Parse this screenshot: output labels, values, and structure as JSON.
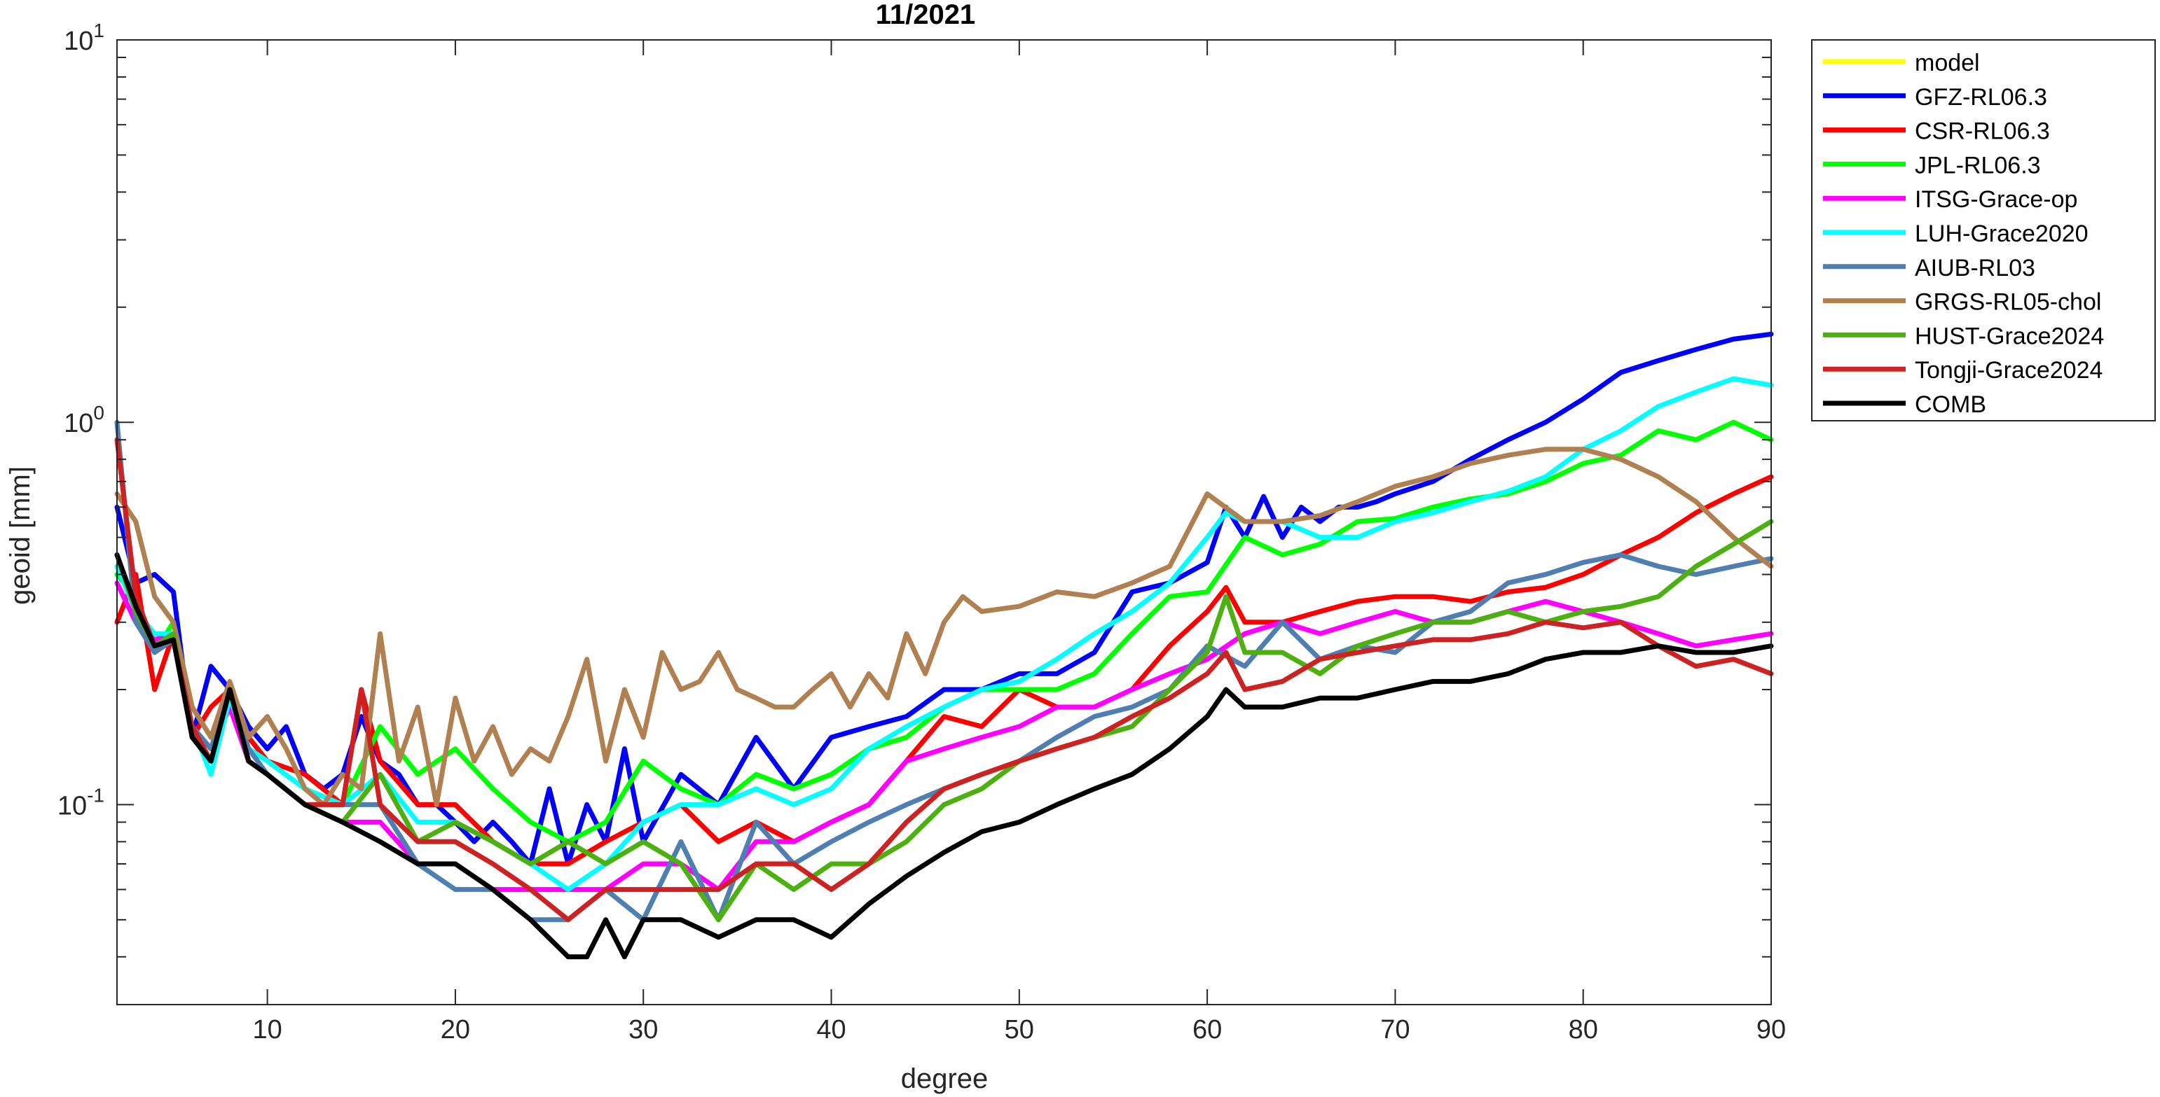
{
  "chart_data": {
    "type": "line",
    "title": "11/2021",
    "xlabel": "degree",
    "ylabel": "geoid [mm]",
    "xlim": [
      2,
      90
    ],
    "ylim": [
      0.03,
      10
    ],
    "yscale": "log",
    "xticks": [
      10,
      20,
      30,
      40,
      50,
      60,
      70,
      80,
      90
    ],
    "xtick_labels": [
      "10",
      "20",
      "30",
      "40",
      "50",
      "60",
      "70",
      "80",
      "90"
    ],
    "yticks": [
      {
        "value": 0.1,
        "base": "10",
        "exp": "-1"
      },
      {
        "value": 1,
        "base": "10",
        "exp": "0"
      },
      {
        "value": 10,
        "base": "10",
        "exp": "1"
      }
    ],
    "grid": false,
    "legend_position": "outside-top-right",
    "colors": {
      "model": "#ffff00",
      "GFZ-RL06.3": "#0000ff",
      "CSR-RL06.3": "#ff0000",
      "JPL-RL06.3": "#00ff00",
      "ITSG-Grace-op": "#ff00ff",
      "LUH-Grace2020": "#00ffff",
      "AIUB-RL03": "#4f7fb0",
      "GRGS-RL05-chol": "#b08050",
      "HUST-Grace2024": "#4cb010",
      "Tongji-Grace2024": "#cc2222",
      "COMB": "#000000"
    },
    "series": [
      {
        "name": "model",
        "keys": [],
        "values": []
      },
      {
        "name": "GFZ-RL06.3",
        "keys": [
          2,
          3,
          4,
          5,
          6,
          7,
          8,
          9,
          10,
          11,
          12,
          13,
          14,
          15,
          16,
          17,
          18,
          19,
          20,
          21,
          22,
          23,
          24,
          25,
          26,
          27,
          28,
          29,
          30,
          32,
          34,
          36,
          38,
          40,
          42,
          44,
          46,
          48,
          50,
          52,
          54,
          56,
          58,
          60,
          61,
          62,
          63,
          64,
          65,
          66,
          67,
          68,
          69,
          70,
          72,
          74,
          76,
          78,
          80,
          82,
          84,
          86,
          88,
          90
        ],
        "values": [
          0.6,
          0.38,
          0.4,
          0.36,
          0.15,
          0.23,
          0.2,
          0.16,
          0.14,
          0.16,
          0.12,
          0.11,
          0.12,
          0.17,
          0.13,
          0.12,
          0.1,
          0.1,
          0.09,
          0.08,
          0.09,
          0.08,
          0.07,
          0.11,
          0.07,
          0.1,
          0.08,
          0.14,
          0.08,
          0.12,
          0.1,
          0.15,
          0.11,
          0.15,
          0.16,
          0.17,
          0.2,
          0.2,
          0.22,
          0.22,
          0.25,
          0.36,
          0.38,
          0.43,
          0.6,
          0.5,
          0.64,
          0.5,
          0.6,
          0.55,
          0.6,
          0.6,
          0.62,
          0.65,
          0.7,
          0.8,
          0.9,
          1.0,
          1.15,
          1.35,
          1.45,
          1.55,
          1.65,
          1.7
        ]
      },
      {
        "name": "CSR-RL06.3",
        "keys": [
          2,
          3,
          4,
          5,
          6,
          7,
          8,
          9,
          10,
          12,
          14,
          15,
          16,
          18,
          20,
          22,
          24,
          26,
          28,
          30,
          32,
          34,
          36,
          38,
          40,
          42,
          44,
          46,
          48,
          50,
          52,
          54,
          56,
          58,
          60,
          61,
          62,
          64,
          66,
          68,
          70,
          72,
          74,
          76,
          78,
          80,
          82,
          84,
          86,
          88,
          90
        ],
        "values": [
          0.3,
          0.4,
          0.2,
          0.28,
          0.15,
          0.18,
          0.2,
          0.15,
          0.13,
          0.12,
          0.1,
          0.2,
          0.13,
          0.1,
          0.1,
          0.08,
          0.07,
          0.07,
          0.08,
          0.09,
          0.1,
          0.08,
          0.09,
          0.08,
          0.09,
          0.1,
          0.13,
          0.17,
          0.16,
          0.2,
          0.18,
          0.18,
          0.2,
          0.26,
          0.32,
          0.37,
          0.3,
          0.3,
          0.32,
          0.34,
          0.35,
          0.35,
          0.34,
          0.36,
          0.37,
          0.4,
          0.45,
          0.5,
          0.58,
          0.65,
          0.72
        ]
      },
      {
        "name": "JPL-RL06.3",
        "keys": [
          2,
          3,
          4,
          5,
          6,
          7,
          8,
          9,
          10,
          12,
          14,
          16,
          18,
          20,
          22,
          24,
          26,
          28,
          30,
          32,
          34,
          36,
          38,
          40,
          42,
          44,
          46,
          48,
          50,
          52,
          54,
          56,
          58,
          60,
          62,
          64,
          66,
          68,
          70,
          72,
          74,
          76,
          78,
          80,
          82,
          84,
          86,
          88,
          90
        ],
        "values": [
          0.4,
          0.35,
          0.25,
          0.3,
          0.18,
          0.15,
          0.2,
          0.14,
          0.13,
          0.11,
          0.1,
          0.16,
          0.12,
          0.14,
          0.11,
          0.09,
          0.08,
          0.09,
          0.13,
          0.11,
          0.1,
          0.12,
          0.11,
          0.12,
          0.14,
          0.15,
          0.18,
          0.2,
          0.2,
          0.2,
          0.22,
          0.28,
          0.35,
          0.36,
          0.5,
          0.45,
          0.48,
          0.55,
          0.56,
          0.6,
          0.63,
          0.65,
          0.7,
          0.78,
          0.82,
          0.95,
          0.9,
          1.0,
          0.9
        ]
      },
      {
        "name": "ITSG-Grace-op",
        "keys": [
          2,
          3,
          4,
          5,
          6,
          7,
          8,
          9,
          10,
          12,
          14,
          16,
          18,
          20,
          22,
          24,
          26,
          28,
          30,
          32,
          34,
          36,
          38,
          40,
          42,
          44,
          46,
          48,
          50,
          52,
          54,
          56,
          58,
          60,
          62,
          64,
          66,
          68,
          70,
          72,
          74,
          76,
          78,
          80,
          82,
          84,
          86,
          88,
          90
        ],
        "values": [
          0.38,
          0.3,
          0.27,
          0.28,
          0.16,
          0.14,
          0.18,
          0.13,
          0.12,
          0.1,
          0.09,
          0.09,
          0.07,
          0.07,
          0.06,
          0.06,
          0.06,
          0.06,
          0.07,
          0.07,
          0.06,
          0.08,
          0.08,
          0.09,
          0.1,
          0.13,
          0.14,
          0.15,
          0.16,
          0.18,
          0.18,
          0.2,
          0.22,
          0.24,
          0.28,
          0.3,
          0.28,
          0.3,
          0.32,
          0.3,
          0.3,
          0.32,
          0.34,
          0.32,
          0.3,
          0.28,
          0.26,
          0.27,
          0.28
        ]
      },
      {
        "name": "LUH-Grace2020",
        "keys": [
          2,
          3,
          4,
          5,
          6,
          7,
          8,
          9,
          10,
          12,
          14,
          16,
          18,
          20,
          22,
          24,
          26,
          28,
          30,
          32,
          34,
          36,
          38,
          40,
          42,
          44,
          46,
          48,
          50,
          52,
          54,
          56,
          58,
          60,
          61,
          62,
          64,
          66,
          68,
          70,
          72,
          74,
          76,
          78,
          80,
          82,
          84,
          86,
          88,
          90
        ],
        "values": [
          0.42,
          0.32,
          0.28,
          0.28,
          0.16,
          0.12,
          0.19,
          0.14,
          0.13,
          0.11,
          0.1,
          0.12,
          0.09,
          0.09,
          0.08,
          0.07,
          0.06,
          0.07,
          0.09,
          0.1,
          0.1,
          0.11,
          0.1,
          0.11,
          0.14,
          0.16,
          0.18,
          0.2,
          0.21,
          0.24,
          0.28,
          0.32,
          0.38,
          0.5,
          0.58,
          0.55,
          0.55,
          0.5,
          0.5,
          0.55,
          0.58,
          0.62,
          0.66,
          0.72,
          0.85,
          0.95,
          1.1,
          1.2,
          1.3,
          1.25
        ]
      },
      {
        "name": "AIUB-RL03",
        "keys": [
          2,
          3,
          4,
          5,
          6,
          7,
          8,
          9,
          10,
          12,
          14,
          16,
          18,
          20,
          22,
          24,
          26,
          28,
          30,
          32,
          34,
          36,
          38,
          40,
          42,
          44,
          46,
          48,
          50,
          52,
          54,
          56,
          58,
          60,
          62,
          64,
          66,
          68,
          70,
          72,
          74,
          76,
          78,
          80,
          82,
          84,
          86,
          88,
          90
        ],
        "values": [
          1.0,
          0.3,
          0.25,
          0.27,
          0.16,
          0.14,
          0.2,
          0.14,
          0.12,
          0.1,
          0.1,
          0.1,
          0.07,
          0.06,
          0.06,
          0.05,
          0.05,
          0.06,
          0.05,
          0.08,
          0.05,
          0.09,
          0.07,
          0.08,
          0.09,
          0.1,
          0.11,
          0.12,
          0.13,
          0.15,
          0.17,
          0.18,
          0.2,
          0.26,
          0.23,
          0.3,
          0.24,
          0.26,
          0.25,
          0.3,
          0.32,
          0.38,
          0.4,
          0.43,
          0.45,
          0.42,
          0.4,
          0.42,
          0.44
        ]
      },
      {
        "name": "GRGS-RL05-chol",
        "keys": [
          2,
          3,
          4,
          5,
          6,
          7,
          8,
          9,
          10,
          11,
          12,
          13,
          14,
          15,
          16,
          17,
          18,
          19,
          20,
          21,
          22,
          23,
          24,
          25,
          26,
          27,
          28,
          29,
          30,
          31,
          32,
          33,
          34,
          35,
          36,
          37,
          38,
          39,
          40,
          41,
          42,
          43,
          44,
          45,
          46,
          47,
          48,
          50,
          52,
          54,
          56,
          58,
          60,
          62,
          64,
          66,
          68,
          70,
          72,
          74,
          76,
          78,
          80,
          82,
          84,
          86,
          88,
          90
        ],
        "values": [
          0.65,
          0.55,
          0.35,
          0.3,
          0.18,
          0.15,
          0.21,
          0.15,
          0.17,
          0.14,
          0.11,
          0.1,
          0.12,
          0.11,
          0.28,
          0.13,
          0.18,
          0.1,
          0.19,
          0.13,
          0.16,
          0.12,
          0.14,
          0.13,
          0.17,
          0.24,
          0.13,
          0.2,
          0.15,
          0.25,
          0.2,
          0.21,
          0.25,
          0.2,
          0.19,
          0.18,
          0.18,
          0.2,
          0.22,
          0.18,
          0.22,
          0.19,
          0.28,
          0.22,
          0.3,
          0.35,
          0.32,
          0.33,
          0.36,
          0.35,
          0.38,
          0.42,
          0.65,
          0.55,
          0.55,
          0.57,
          0.62,
          0.68,
          0.72,
          0.78,
          0.82,
          0.85,
          0.85,
          0.8,
          0.72,
          0.62,
          0.5,
          0.42
        ]
      },
      {
        "name": "HUST-Grace2024",
        "keys": [
          2,
          3,
          4,
          5,
          6,
          7,
          8,
          9,
          10,
          12,
          14,
          16,
          18,
          20,
          22,
          24,
          26,
          28,
          30,
          32,
          34,
          36,
          38,
          40,
          42,
          44,
          46,
          48,
          50,
          52,
          54,
          56,
          58,
          60,
          61,
          62,
          64,
          66,
          68,
          70,
          72,
          74,
          76,
          78,
          80,
          82,
          84,
          86,
          88,
          90
        ],
        "values": [
          0.45,
          0.32,
          0.26,
          0.28,
          0.15,
          0.13,
          0.2,
          0.13,
          0.12,
          0.1,
          0.09,
          0.12,
          0.08,
          0.09,
          0.08,
          0.07,
          0.08,
          0.07,
          0.08,
          0.07,
          0.05,
          0.07,
          0.06,
          0.07,
          0.07,
          0.08,
          0.1,
          0.11,
          0.13,
          0.14,
          0.15,
          0.16,
          0.2,
          0.25,
          0.35,
          0.25,
          0.25,
          0.22,
          0.26,
          0.28,
          0.3,
          0.3,
          0.32,
          0.3,
          0.32,
          0.33,
          0.35,
          0.42,
          0.48,
          0.55
        ]
      },
      {
        "name": "Tongji-Grace2024",
        "keys": [
          2,
          3,
          4,
          5,
          6,
          7,
          8,
          9,
          10,
          12,
          14,
          15,
          16,
          18,
          20,
          22,
          24,
          26,
          28,
          30,
          32,
          34,
          36,
          38,
          40,
          42,
          44,
          46,
          48,
          50,
          52,
          54,
          56,
          58,
          60,
          61,
          62,
          64,
          66,
          68,
          70,
          72,
          74,
          76,
          78,
          80,
          82,
          84,
          86,
          88,
          90
        ],
        "values": [
          0.9,
          0.35,
          0.26,
          0.27,
          0.16,
          0.13,
          0.2,
          0.13,
          0.12,
          0.1,
          0.1,
          0.2,
          0.1,
          0.08,
          0.08,
          0.07,
          0.06,
          0.05,
          0.06,
          0.06,
          0.06,
          0.06,
          0.07,
          0.07,
          0.06,
          0.07,
          0.09,
          0.11,
          0.12,
          0.13,
          0.14,
          0.15,
          0.17,
          0.19,
          0.22,
          0.25,
          0.2,
          0.21,
          0.24,
          0.25,
          0.26,
          0.27,
          0.27,
          0.28,
          0.3,
          0.29,
          0.3,
          0.26,
          0.23,
          0.24,
          0.22
        ]
      },
      {
        "name": "COMB",
        "keys": [
          2,
          3,
          4,
          5,
          6,
          7,
          8,
          9,
          10,
          12,
          14,
          16,
          18,
          20,
          22,
          24,
          26,
          27,
          28,
          29,
          30,
          32,
          34,
          36,
          38,
          40,
          42,
          44,
          46,
          48,
          50,
          52,
          54,
          56,
          58,
          60,
          61,
          62,
          64,
          66,
          68,
          70,
          72,
          74,
          76,
          78,
          80,
          82,
          84,
          86,
          88,
          90
        ],
        "values": [
          0.45,
          0.33,
          0.26,
          0.27,
          0.15,
          0.13,
          0.2,
          0.13,
          0.12,
          0.1,
          0.09,
          0.08,
          0.07,
          0.07,
          0.06,
          0.05,
          0.04,
          0.04,
          0.05,
          0.04,
          0.05,
          0.05,
          0.045,
          0.05,
          0.05,
          0.045,
          0.055,
          0.065,
          0.075,
          0.085,
          0.09,
          0.1,
          0.11,
          0.12,
          0.14,
          0.17,
          0.2,
          0.18,
          0.18,
          0.19,
          0.19,
          0.2,
          0.21,
          0.21,
          0.22,
          0.24,
          0.25,
          0.25,
          0.26,
          0.25,
          0.25,
          0.26
        ]
      }
    ]
  }
}
